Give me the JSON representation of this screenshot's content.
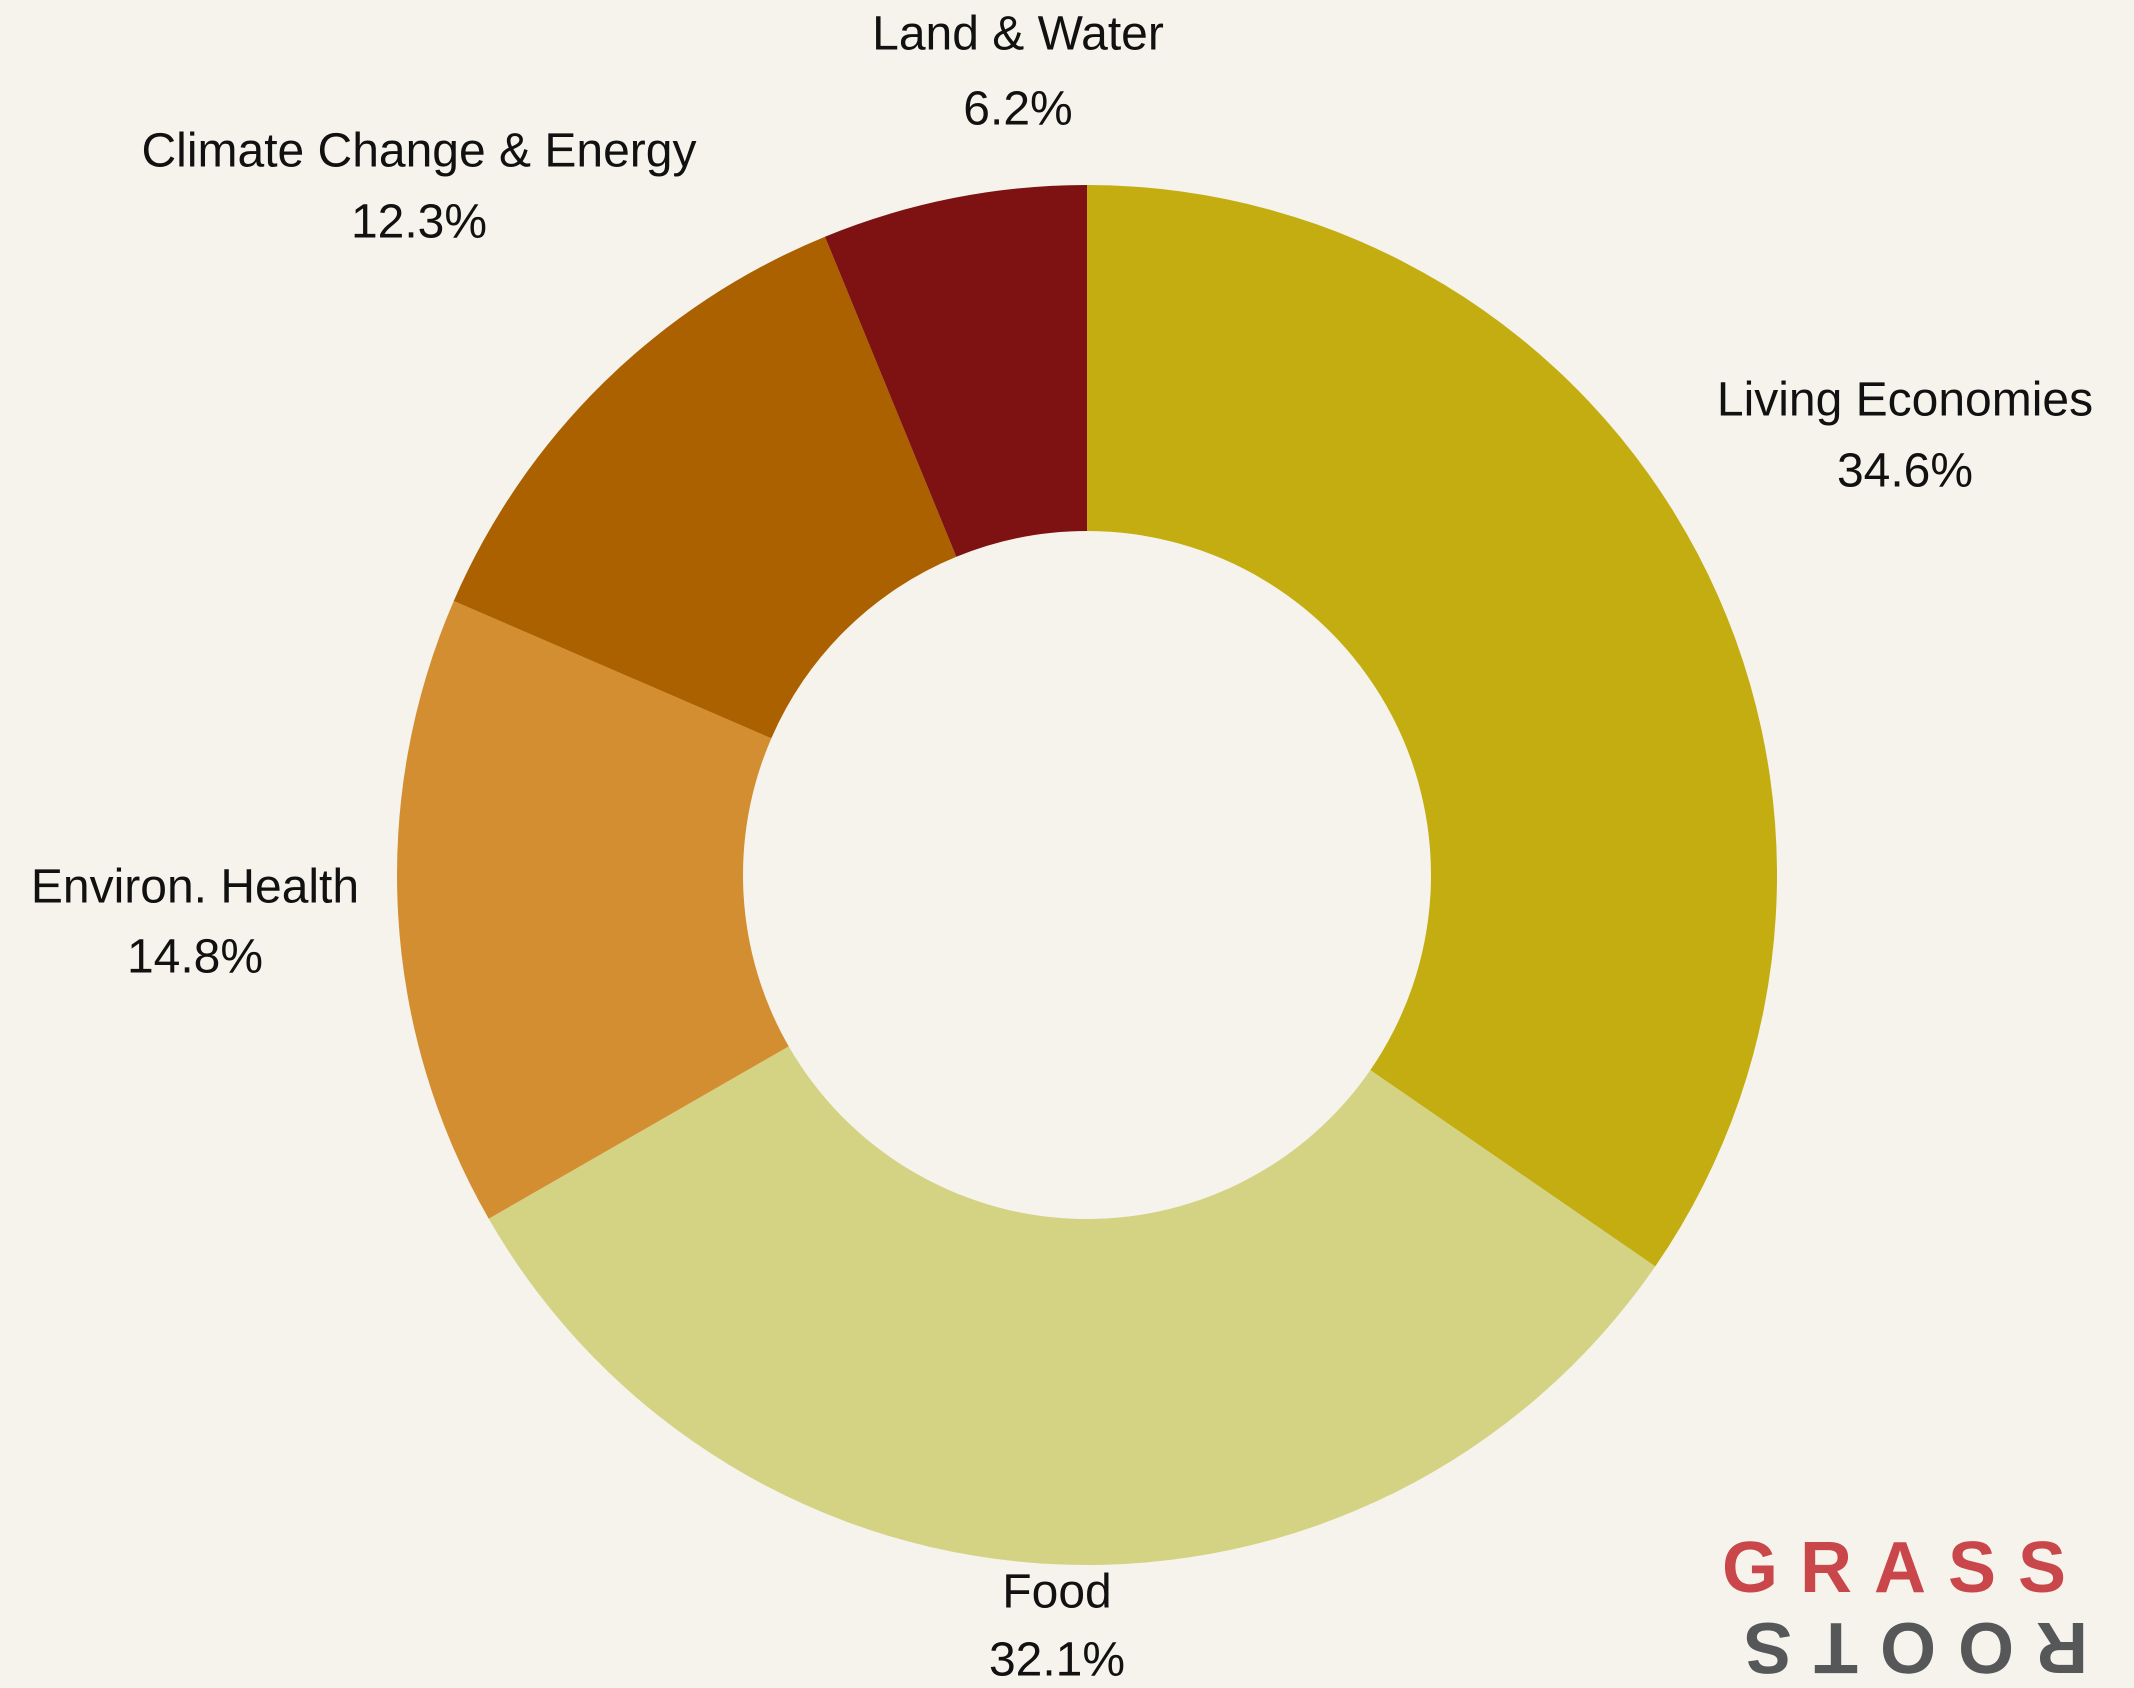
{
  "chart_data": {
    "type": "donut",
    "categories": [
      "Living Economies",
      "Food",
      "Environ. Health",
      "Climate Change & Energy",
      "Land & Water"
    ],
    "values": [
      34.6,
      32.1,
      14.8,
      12.3,
      6.2
    ],
    "value_labels": [
      "34.6%",
      "32.1%",
      "14.8%",
      "12.3%",
      "6.2%"
    ],
    "colors": [
      "#c4ad10",
      "#d4d384",
      "#d48e32",
      "#ab6100",
      "#7e1111"
    ]
  },
  "logo": {
    "line1": "GRASS",
    "line2": "ROOTS"
  }
}
